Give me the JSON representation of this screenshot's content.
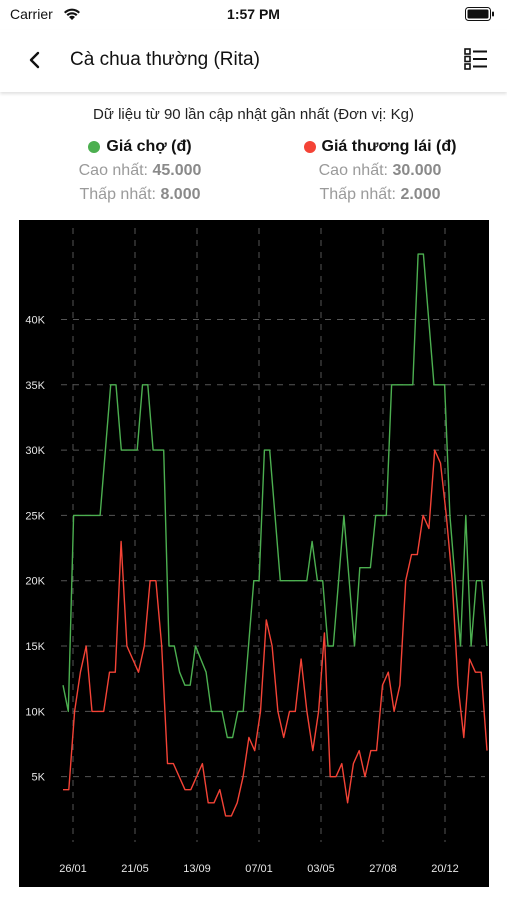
{
  "status_bar": {
    "carrier": "Carrier",
    "time": "1:57 PM"
  },
  "header": {
    "title": "Cà chua thường (Rita)"
  },
  "subtitle": "Dữ liệu từ 90 lần cập nhật gần nhất (Đơn vị: Kg)",
  "legend": [
    {
      "label": "Giá chợ (đ)",
      "color": "#4caf50",
      "max_label": "Cao nhất:",
      "max_value": "45.000",
      "min_label": "Thấp nhất:",
      "min_value": "8.000"
    },
    {
      "label": "Giá thương lái (đ)",
      "color": "#f44336",
      "max_label": "Cao nhất:",
      "max_value": "30.000",
      "min_label": "Thấp nhất:",
      "min_value": "2.000"
    }
  ],
  "chart_data": {
    "type": "line",
    "ylim": [
      0,
      47000
    ],
    "y_ticks": [
      5000,
      10000,
      15000,
      20000,
      25000,
      30000,
      35000,
      40000
    ],
    "y_tick_labels": [
      "5K",
      "10K",
      "15K",
      "20K",
      "25K",
      "30K",
      "35K",
      "40K"
    ],
    "x_tick_labels": [
      "26/01",
      "21/05",
      "13/09",
      "07/01",
      "03/05",
      "27/08",
      "20/12"
    ],
    "grid": true,
    "series": [
      {
        "name": "Giá chợ (đ)",
        "color": "#4caf50",
        "values": [
          12000,
          10000,
          25000,
          25000,
          25000,
          25000,
          25000,
          25000,
          30000,
          35000,
          35000,
          30000,
          30000,
          30000,
          30000,
          35000,
          35000,
          30000,
          30000,
          30000,
          15000,
          15000,
          13000,
          12000,
          12000,
          15000,
          14000,
          13000,
          10000,
          10000,
          10000,
          8000,
          8000,
          10000,
          10000,
          15000,
          20000,
          20000,
          30000,
          30000,
          25000,
          20000,
          20000,
          20000,
          20000,
          20000,
          20000,
          23000,
          20000,
          20000,
          15000,
          15000,
          20000,
          25000,
          20000,
          15000,
          21000,
          21000,
          21000,
          25000,
          25000,
          25000,
          35000,
          35000,
          35000,
          35000,
          35000,
          45000,
          45000,
          40000,
          35000,
          35000,
          35000,
          25000,
          20000,
          15000,
          25000,
          15000,
          20000,
          20000,
          15000
        ]
      },
      {
        "name": "Giá thương lái (đ)",
        "color": "#f44336",
        "values": [
          4000,
          4000,
          10000,
          13000,
          15000,
          10000,
          10000,
          10000,
          13000,
          13000,
          23000,
          15000,
          14000,
          13000,
          15000,
          20000,
          20000,
          15000,
          6000,
          6000,
          5000,
          4000,
          4000,
          5000,
          6000,
          3000,
          3000,
          4000,
          2000,
          2000,
          3000,
          5000,
          8000,
          7000,
          10000,
          17000,
          15000,
          10000,
          8000,
          10000,
          10000,
          14000,
          10000,
          7000,
          10000,
          16000,
          5000,
          5000,
          6000,
          3000,
          6000,
          7000,
          5000,
          7000,
          7000,
          12000,
          13000,
          10000,
          12000,
          20000,
          22000,
          22000,
          25000,
          24000,
          30000,
          29000,
          25000,
          20000,
          12000,
          8000,
          14000,
          13000,
          13000,
          7000
        ]
      }
    ]
  }
}
